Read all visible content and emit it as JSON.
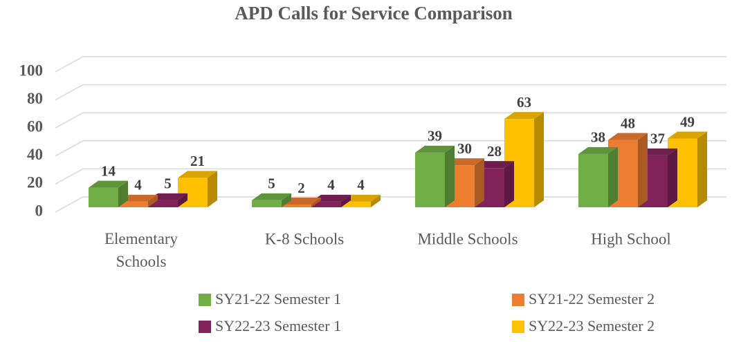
{
  "chart_data": {
    "type": "bar3d",
    "title": "APD Calls for Service Comparison",
    "categories": [
      "Elementary Schools",
      "K-8 Schools",
      "Middle Schools",
      "High School"
    ],
    "series": [
      {
        "name": "SY21-22 Semester 1",
        "color": "#70ad47",
        "values": [
          14,
          5,
          39,
          38
        ]
      },
      {
        "name": "SY21-22 Semester 2",
        "color": "#ed7d31",
        "values": [
          4,
          2,
          30,
          48
        ]
      },
      {
        "name": "SY22-23 Semester 1",
        "color": "#80235a",
        "values": [
          5,
          4,
          28,
          37
        ]
      },
      {
        "name": "SY22-23 Semester 2",
        "color": "#ffc000",
        "values": [
          21,
          4,
          63,
          49
        ]
      }
    ],
    "ylim": [
      0,
      100
    ],
    "yticks": [
      0,
      20,
      40,
      60,
      80,
      100
    ],
    "grid": true,
    "legend": "bottom"
  }
}
